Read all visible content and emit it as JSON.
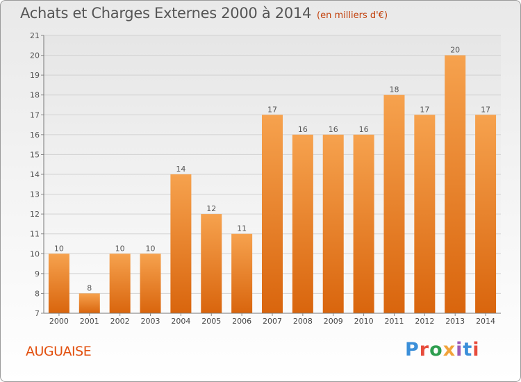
{
  "header": {
    "title": "Achats et Charges Externes 2000 à 2014",
    "unit": "(en milliers d'€)"
  },
  "footer": {
    "place": "AUGUAISE"
  },
  "logo": {
    "text": "Proxiti",
    "colors": [
      "#3b8fd9",
      "#e74c3c",
      "#2e9e4f",
      "#f2a33a",
      "#9b59b6",
      "#3b8fd9",
      "#e74c3c"
    ]
  },
  "chart_data": {
    "type": "bar",
    "title": "Achats et Charges Externes 2000 à 2014",
    "xlabel": "",
    "ylabel": "(en milliers d'€)",
    "ylim": [
      7,
      21
    ],
    "yticks": [
      7,
      8,
      9,
      10,
      11,
      12,
      13,
      14,
      15,
      16,
      17,
      18,
      19,
      20,
      21
    ],
    "grid": true,
    "categories": [
      "2000",
      "2001",
      "2002",
      "2003",
      "2004",
      "2005",
      "2006",
      "2007",
      "2008",
      "2009",
      "2010",
      "2011",
      "2012",
      "2013",
      "2014"
    ],
    "values": [
      10,
      8,
      10,
      10,
      14,
      12,
      11,
      17,
      16,
      16,
      16,
      18,
      17,
      20,
      17
    ],
    "bar_color": "#f08a2c"
  }
}
